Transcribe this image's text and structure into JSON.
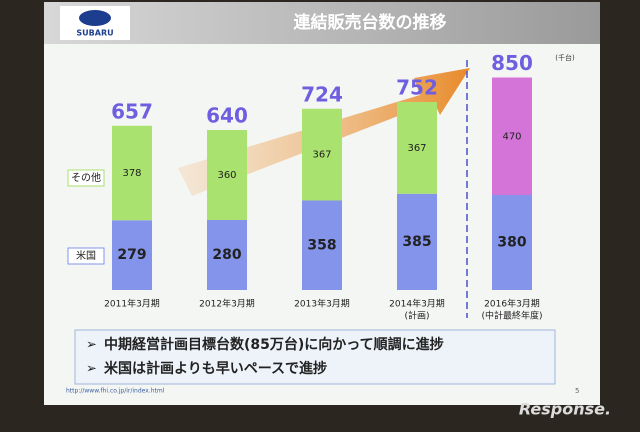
{
  "logo": "SUBARU",
  "footer_url": "http://www.fhi.co.jp/ir/index.html",
  "page_number": "5",
  "watermark": "Response.",
  "bullets": [
    "中期経営計画目標台数(85万台)に向かって順調に進捗",
    "米国は計画よりも早いペースで進捗"
  ],
  "chart_data": {
    "type": "stacked_bar",
    "title": "連結販売台数の推移",
    "unit_label": "(千台)",
    "categories": [
      "2011年3月期",
      "2012年3月期",
      "2013年3月期",
      "2014年3月期",
      "2016年3月期"
    ],
    "category_notes": [
      null,
      null,
      null,
      "(計画)",
      "(中計最終年度)"
    ],
    "series": [
      {
        "name": "米国",
        "color": "#8394ea",
        "values": [
          279,
          280,
          358,
          385,
          380
        ]
      },
      {
        "name": "その他",
        "color": "#a9e26e",
        "colors": [
          "#a9e26e",
          "#a9e26e",
          "#a9e26e",
          "#a9e26e",
          "#d574d8"
        ],
        "values": [
          378,
          360,
          367,
          367,
          470
        ]
      }
    ],
    "totals": [
      657,
      640,
      724,
      752,
      850
    ],
    "totals_color": "#6f5fe0"
  }
}
